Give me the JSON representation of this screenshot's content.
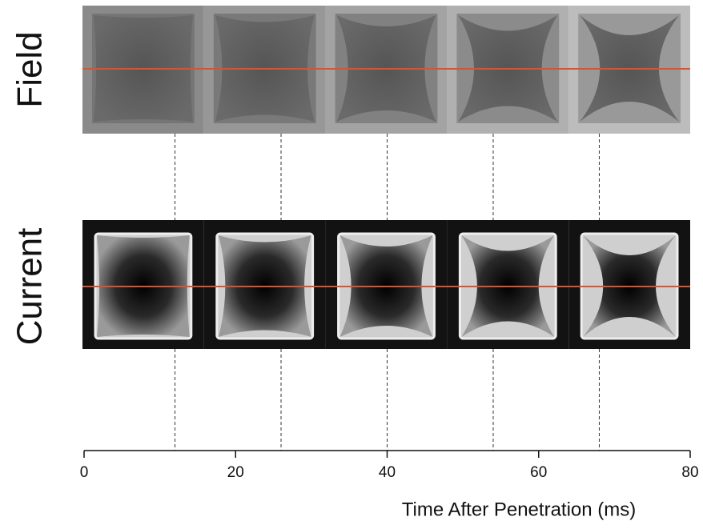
{
  "chart_data": {
    "type": "strip",
    "row_labels": [
      "Field",
      "Current"
    ],
    "frame_times": [
      12,
      26,
      40,
      54,
      68
    ],
    "xlabel": "Time After Penetration (ms)",
    "xlim": [
      0,
      80
    ],
    "xticks": [
      0,
      20,
      40,
      60,
      80
    ],
    "line_color": "#d9532f"
  }
}
